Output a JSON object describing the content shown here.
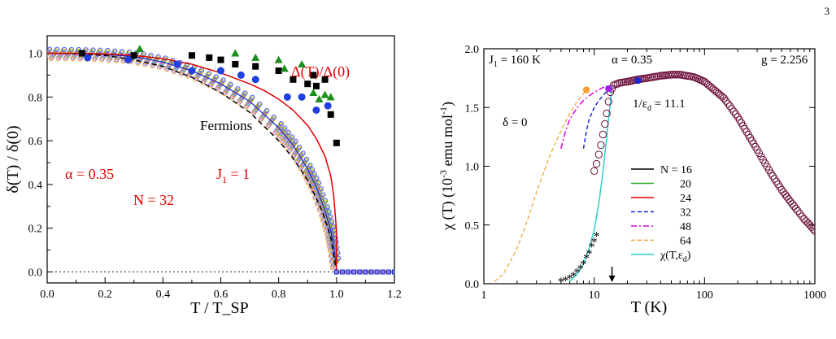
{
  "page": {
    "number": "3"
  },
  "chart_data": [
    {
      "type": "scatter",
      "title": "",
      "xlabel": "T / T_SP",
      "ylabel": "δ(T) / δ(0)",
      "xlim": [
        0.0,
        1.2
      ],
      "ylim": [
        -0.05,
        1.08
      ],
      "xticks": [
        "0.0",
        "0.2",
        "0.4",
        "0.6",
        "0.8",
        "1.0",
        "1.2"
      ],
      "yticks": [
        "0.0",
        "0.2",
        "0.4",
        "0.6",
        "0.8",
        "1.0"
      ],
      "annotations": {
        "alpha": "α = 0.35",
        "N": "N = 32",
        "J1": "J",
        "J1_sub": "1",
        "J1_val": " = 1",
        "fermions": "Fermions",
        "gap_ratio": "Δ(T)/Δ(0)"
      },
      "colors": {
        "gap": "#e00000",
        "squares": "#000000",
        "circles": "#1f3fe0",
        "triangles": "#1a8f1a"
      },
      "series": [
        {
          "name": "Δ(T)/Δ(0)",
          "style": "red-line",
          "x": [
            0,
            0.1,
            0.2,
            0.3,
            0.4,
            0.5,
            0.6,
            0.7,
            0.75,
            0.8,
            0.85,
            0.9,
            0.93,
            0.96,
            0.98,
            0.99,
            1.0,
            1.0
          ],
          "y": [
            1.0,
            1.0,
            0.997,
            0.99,
            0.975,
            0.95,
            0.91,
            0.86,
            0.83,
            0.79,
            0.74,
            0.67,
            0.61,
            0.53,
            0.44,
            0.35,
            0.19,
            0.0
          ]
        },
        {
          "name": "Fermions",
          "style": "black-dashed",
          "x": [
            0,
            0.1,
            0.2,
            0.3,
            0.4,
            0.5,
            0.6,
            0.7,
            0.8,
            0.85,
            0.9,
            0.95,
            0.98,
            1.0
          ],
          "y": [
            1.0,
            0.998,
            0.99,
            0.97,
            0.94,
            0.89,
            0.82,
            0.73,
            0.6,
            0.52,
            0.42,
            0.28,
            0.16,
            0.0
          ]
        },
        {
          "name": "N = 32 ensemble",
          "style": "colored-dots",
          "x": [
            0,
            0.1,
            0.2,
            0.3,
            0.4,
            0.5,
            0.6,
            0.7,
            0.8,
            0.85,
            0.9,
            0.93,
            0.96,
            0.98,
            0.99,
            1.0
          ],
          "y": [
            1.0,
            0.999,
            0.995,
            0.985,
            0.96,
            0.92,
            0.86,
            0.78,
            0.66,
            0.58,
            0.47,
            0.39,
            0.28,
            0.19,
            0.12,
            0.02
          ]
        },
        {
          "name": "squares",
          "style": "black-square",
          "x": [
            0.12,
            0.3,
            0.5,
            0.56,
            0.6,
            0.65,
            0.72,
            0.8,
            0.85,
            0.9,
            0.92,
            0.93,
            0.96,
            0.98,
            1.0
          ],
          "y": [
            1.0,
            0.99,
            0.99,
            0.98,
            0.97,
            0.95,
            0.94,
            0.92,
            0.88,
            0.86,
            0.9,
            0.85,
            0.88,
            0.72,
            0.59
          ]
        },
        {
          "name": "circles",
          "style": "blue-circle",
          "x": [
            0.14,
            0.28,
            0.45,
            0.5,
            0.6,
            0.67,
            0.72,
            0.83,
            0.88,
            0.93,
            0.97
          ],
          "y": [
            0.98,
            0.97,
            0.95,
            0.92,
            0.92,
            0.9,
            0.88,
            0.8,
            0.8,
            0.74,
            0.76
          ]
        },
        {
          "name": "triangles",
          "style": "green-triangle",
          "x": [
            0.32,
            0.65,
            0.72,
            0.8,
            0.82,
            0.88,
            0.92,
            0.94,
            0.96,
            0.98
          ],
          "y": [
            1.02,
            1.0,
            0.98,
            0.97,
            0.93,
            0.95,
            0.82,
            0.79,
            0.81,
            0.8
          ]
        },
        {
          "name": "tail",
          "style": "flat-zero",
          "x": [
            1.0,
            1.02,
            1.04,
            1.06,
            1.08,
            1.1,
            1.12,
            1.14,
            1.16,
            1.18,
            1.2
          ],
          "y": [
            0,
            0,
            0,
            0,
            0,
            0,
            0,
            0,
            0,
            0,
            0
          ]
        }
      ]
    },
    {
      "type": "line",
      "title": "",
      "xscale": "log",
      "xlabel": "T (K)",
      "ylabel": "χ (T)  (10⁻³ emu mol⁻¹)",
      "ylabel_parts": {
        "main": "χ (T)  (10",
        "exp1": "-3",
        "mid": " emu mol",
        "exp2": "-1",
        "end": ")"
      },
      "xlim": [
        1,
        1000
      ],
      "ylim": [
        0.0,
        2.0
      ],
      "xticks": [
        "1",
        "10",
        "100",
        "1000"
      ],
      "yticks": [
        "0.0",
        "0.5",
        "1.0",
        "1.5",
        "2.0"
      ],
      "annotations": {
        "J1_label": "J",
        "J1_sub": "1",
        "J1_val": " = 160 K",
        "alpha": "α = 0.35",
        "g": "g = 2.256",
        "inv_eps": "1/ε",
        "inv_eps_sub": "d",
        "inv_eps_val": " = 11.1",
        "delta": "δ = 0",
        "arrow_T": 14.5
      },
      "legend": {
        "position": "center-right",
        "entries": [
          {
            "label": "N = 16",
            "color": "#000000",
            "dash": "solid"
          },
          {
            "label": "20",
            "color": "#1aa81a",
            "dash": "solid"
          },
          {
            "label": "24",
            "color": "#e00000",
            "dash": "solid"
          },
          {
            "label": "32",
            "color": "#1a2ad0",
            "dash": "dashed"
          },
          {
            "label": "48",
            "color": "#e000e0",
            "dash": "dashdot"
          },
          {
            "label": "64",
            "color": "#f0a030",
            "dash": "dashed"
          },
          {
            "label": "χ(T,ε",
            "sub": "d",
            "close": ")",
            "color": "#2ed0c8",
            "dash": "solid"
          }
        ]
      },
      "series": [
        {
          "name": "χ(T,εd)",
          "color": "#2ed0c8",
          "x": [
            6,
            7,
            8,
            9,
            10,
            11,
            12,
            13,
            14,
            14.5
          ],
          "y": [
            0.02,
            0.08,
            0.17,
            0.3,
            0.46,
            0.68,
            0.95,
            1.25,
            1.55,
            1.69
          ]
        },
        {
          "name": "64",
          "color": "#f0a030",
          "x": [
            1.25,
            1.5,
            2,
            2.5,
            3,
            4,
            5,
            6,
            7,
            8,
            9
          ],
          "y": [
            0.02,
            0.08,
            0.3,
            0.55,
            0.78,
            1.1,
            1.3,
            1.45,
            1.55,
            1.62,
            1.66
          ]
        },
        {
          "name": "48",
          "color": "#e000e0",
          "x": [
            5,
            5.5,
            6,
            7,
            8,
            9,
            10,
            12,
            14
          ],
          "y": [
            1.15,
            1.3,
            1.4,
            1.5,
            1.56,
            1.6,
            1.63,
            1.67,
            1.69
          ]
        },
        {
          "name": "32",
          "color": "#1a2ad0",
          "x": [
            8,
            8.5,
            9,
            10,
            11,
            12,
            13,
            14
          ],
          "y": [
            1.15,
            1.3,
            1.4,
            1.5,
            1.56,
            1.6,
            1.64,
            1.67
          ]
        },
        {
          "name": "open circles",
          "color": "#6b0f3a",
          "x": [
            10,
            10.5,
            11,
            11.5,
            12,
            12.5,
            13,
            13.5,
            14,
            15,
            17,
            20,
            25,
            30,
            40,
            50,
            60,
            80,
            100,
            150,
            200,
            300,
            400,
            500,
            600,
            700,
            800,
            900,
            1000
          ],
          "y": [
            0.96,
            1.02,
            1.1,
            1.18,
            1.27,
            1.36,
            1.45,
            1.55,
            1.63,
            1.69,
            1.71,
            1.72,
            1.74,
            1.75,
            1.77,
            1.78,
            1.78,
            1.76,
            1.72,
            1.58,
            1.42,
            1.14,
            0.94,
            0.8,
            0.7,
            0.62,
            0.55,
            0.5,
            0.45
          ]
        },
        {
          "name": "stars",
          "color": "#000000",
          "x": [
            5,
            5.5,
            6,
            6.5,
            7,
            7.5,
            8,
            8.5,
            9,
            9.5,
            10,
            10.5
          ],
          "y": [
            0.02,
            0.03,
            0.05,
            0.07,
            0.1,
            0.13,
            0.17,
            0.22,
            0.26,
            0.32,
            0.36,
            0.41
          ]
        },
        {
          "name": "orange point",
          "color": "#f0a030",
          "x": [
            8.5
          ],
          "y": [
            1.65
          ]
        },
        {
          "name": "purple point",
          "color": "#a020f0",
          "x": [
            13.5
          ],
          "y": [
            1.66
          ]
        },
        {
          "name": "blue point",
          "color": "#1a2ad0",
          "x": [
            25
          ],
          "y": [
            1.73
          ]
        }
      ]
    }
  ]
}
